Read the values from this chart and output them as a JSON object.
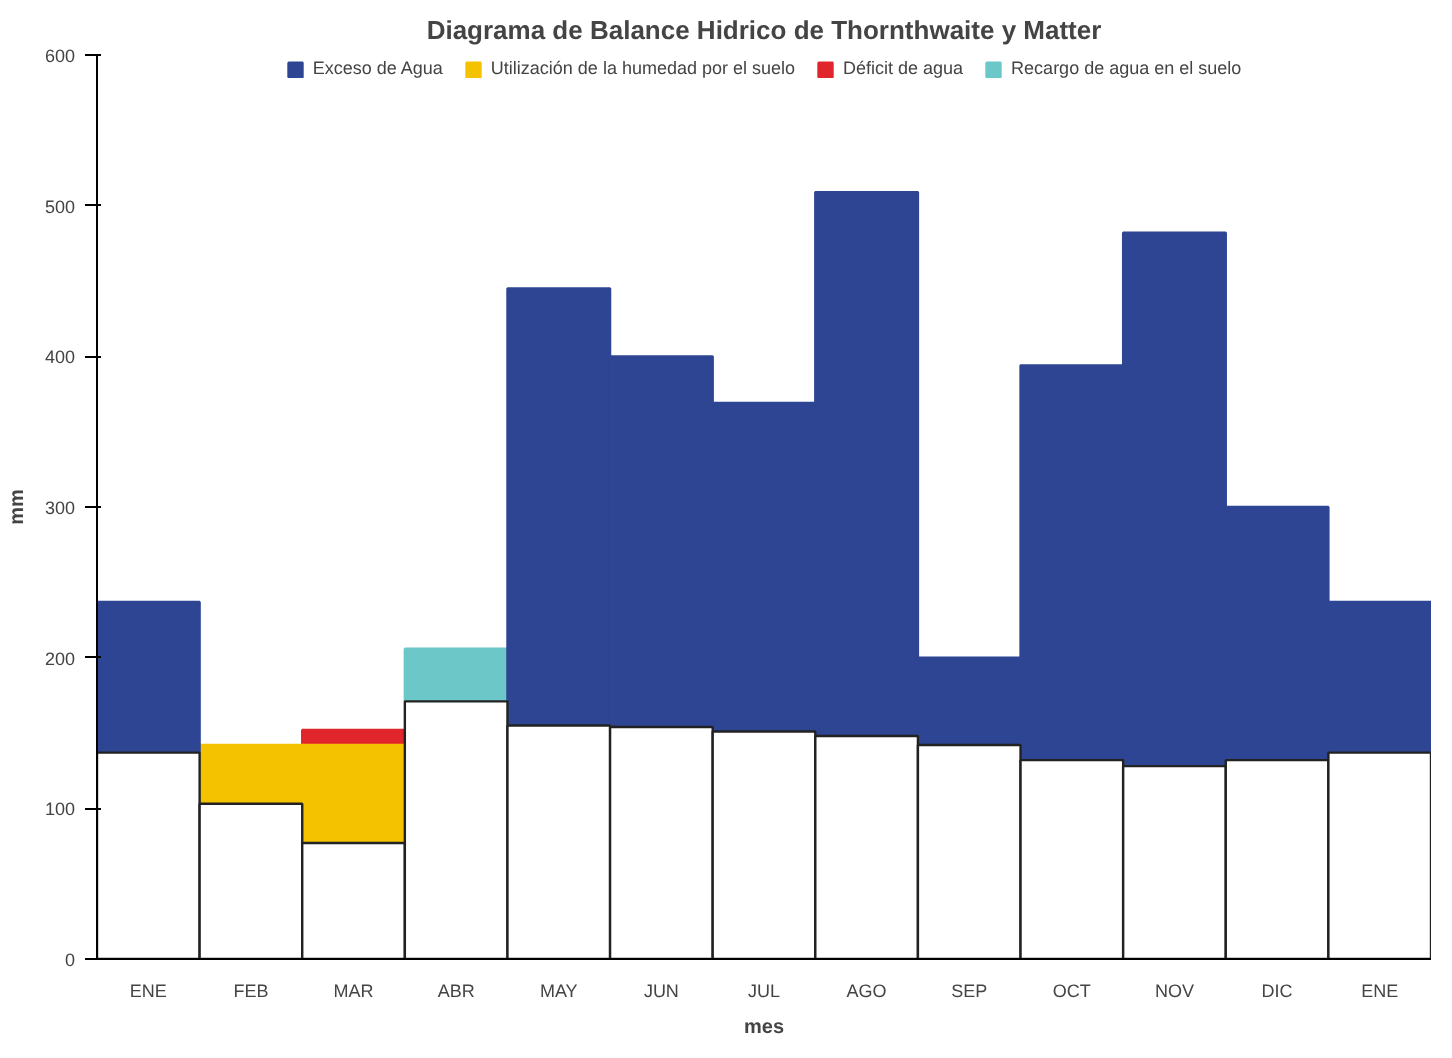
{
  "chart_data": {
    "type": "bar",
    "title": "Diagrama de Balance Hidrico de Thornthwaite y Matter",
    "xlabel": "mes",
    "ylabel": "mm",
    "categories": [
      "ENE",
      "FEB",
      "MAR",
      "ABR",
      "MAY",
      "JUN",
      "JUL",
      "AGO",
      "SEP",
      "OCT",
      "NOV",
      "DIC",
      "ENE"
    ],
    "stacked": true,
    "series": [
      {
        "color": "#ffffff",
        "values": [
          137,
          103,
          77,
          171,
          155,
          154,
          151,
          148,
          142,
          132,
          128,
          132,
          137
        ]
      },
      {
        "name": "Exceso de Agua",
        "color": "#2e4593",
        "values": [
          100,
          null,
          null,
          null,
          290,
          246,
          218,
          361,
          58,
          262,
          354,
          168,
          100
        ]
      },
      {
        "name": "Utilización de la humedad por el suelo",
        "color": "#f5c200",
        "values": [
          null,
          39,
          65,
          null,
          null,
          null,
          null,
          null,
          null,
          null,
          null,
          null,
          null
        ]
      },
      {
        "name": "Déficit de agua",
        "color": "#e0262b",
        "values": [
          null,
          null,
          10,
          null,
          null,
          null,
          null,
          null,
          null,
          null,
          null,
          null,
          null
        ]
      },
      {
        "name": "Recargo de agua en el suelo",
        "color": "#6cc8c8",
        "values": [
          null,
          null,
          null,
          35,
          null,
          null,
          null,
          null,
          null,
          null,
          null,
          null,
          null
        ]
      }
    ],
    "ylim": [
      0,
      600
    ],
    "yticks": [
      0,
      100,
      200,
      300,
      400,
      500,
      600
    ],
    "grid": false,
    "legend": "top"
  }
}
